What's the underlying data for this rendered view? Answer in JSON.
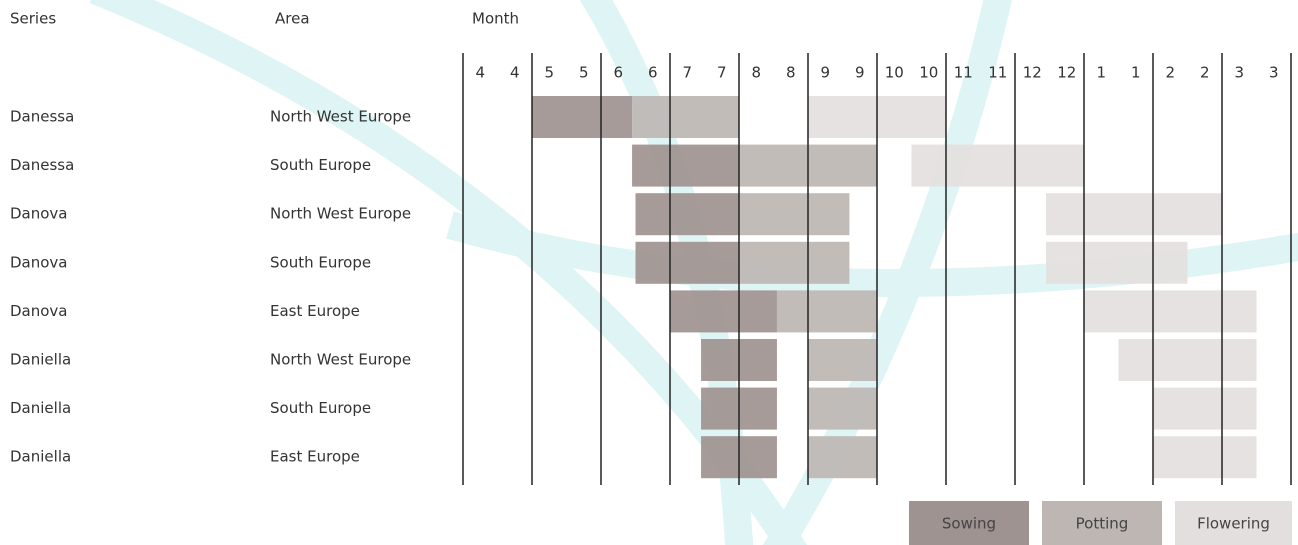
{
  "chart_data": {
    "type": "gantt",
    "headers": [
      "Series",
      "Area"
    ],
    "x_label": "Month",
    "rows": [
      [
        "Danessa",
        "North West Europe"
      ],
      [
        "Danessa",
        "South Europe"
      ],
      [
        "Danova",
        "North West Europe"
      ],
      [
        "Danova",
        "South Europe"
      ],
      [
        "Danova",
        "East Europe"
      ],
      [
        "Daniella",
        "North West Europe"
      ],
      [
        "Daniella",
        "South Europe"
      ],
      [
        "Daniella",
        "East Europe"
      ]
    ],
    "xlim": [
      0,
      12
    ],
    "xgrid": [
      0,
      1,
      2,
      3,
      4,
      5,
      6,
      7,
      8,
      9,
      10,
      11,
      12
    ],
    "xticks": [
      {
        "value": 0.25,
        "label": "4"
      },
      {
        "value": 0.75,
        "label": "4"
      },
      {
        "value": 1.25,
        "label": "5"
      },
      {
        "value": 1.75,
        "label": "5"
      },
      {
        "value": 2.25,
        "label": "6"
      },
      {
        "value": 2.75,
        "label": "6"
      },
      {
        "value": 3.25,
        "label": "7"
      },
      {
        "value": 3.75,
        "label": "7"
      },
      {
        "value": 4.25,
        "label": "8"
      },
      {
        "value": 4.75,
        "label": "8"
      },
      {
        "value": 5.25,
        "label": "9"
      },
      {
        "value": 5.75,
        "label": "9"
      },
      {
        "value": 6.25,
        "label": "10"
      },
      {
        "value": 6.75,
        "label": "10"
      },
      {
        "value": 7.25,
        "label": "11"
      },
      {
        "value": 7.75,
        "label": "11"
      },
      {
        "value": 8.25,
        "label": "12"
      },
      {
        "value": 8.75,
        "label": "12"
      },
      {
        "value": 9.25,
        "label": "1"
      },
      {
        "value": 9.75,
        "label": "1"
      },
      {
        "value": 10.25,
        "label": "2"
      },
      {
        "value": 10.75,
        "label": "2"
      },
      {
        "value": 11.25,
        "label": "3"
      },
      {
        "value": 11.75,
        "label": "3"
      }
    ],
    "series": [
      {
        "name": "Sowing",
        "color": "#9e9390",
        "values": [
          [
            1.0,
            2.45
          ],
          [
            2.45,
            4.0
          ],
          [
            2.5,
            4.0
          ],
          [
            2.5,
            4.0
          ],
          [
            3.0,
            4.55
          ],
          [
            3.45,
            4.55
          ],
          [
            3.45,
            4.55
          ],
          [
            3.45,
            4.55
          ]
        ]
      },
      {
        "name": "Potting",
        "color": "#bdb6b3",
        "values": [
          [
            2.45,
            4.0
          ],
          [
            4.0,
            6.0
          ],
          [
            4.0,
            5.6
          ],
          [
            4.0,
            5.6
          ],
          [
            4.55,
            6.0
          ],
          [
            5.0,
            6.0
          ],
          [
            5.0,
            6.0
          ],
          [
            5.0,
            6.0
          ]
        ]
      },
      {
        "name": "Flowering",
        "color": "#e3dfde",
        "values": [
          [
            5.0,
            7.0
          ],
          [
            6.5,
            9.0
          ],
          [
            8.45,
            11.0
          ],
          [
            8.45,
            10.5
          ],
          [
            9.0,
            11.5
          ],
          [
            9.5,
            11.5
          ],
          [
            10.0,
            11.5
          ],
          [
            10.0,
            11.5
          ]
        ]
      }
    ]
  }
}
